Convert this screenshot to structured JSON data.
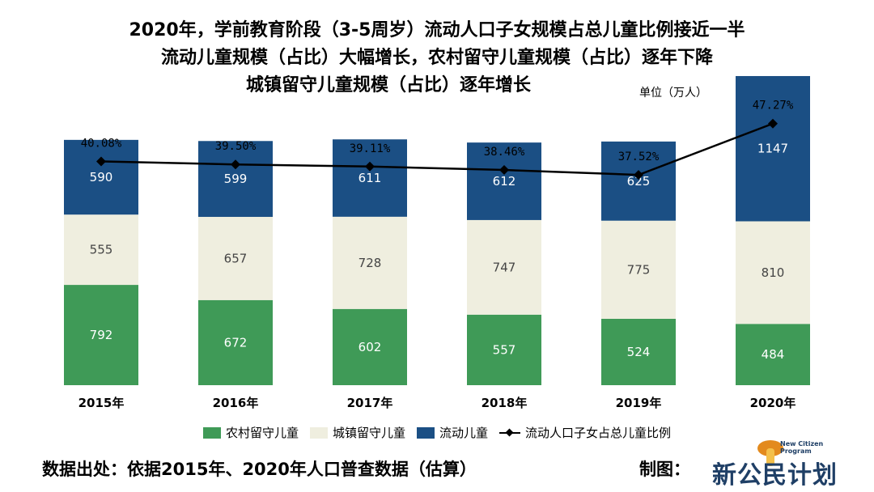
{
  "titles": [
    "2020年，学前教育阶段（3-5周岁）流动人口子女规模占总儿童比例接近一半",
    "流动儿童规模（占比）大幅增长，农村留守儿童规模（占比）逐年下降",
    "城镇留守儿童规模（占比）逐年增长"
  ],
  "unit": "单位（万人）",
  "source": "数据出处：依据2015年、2020年人口普查数据（估算）",
  "credit_label": "制图：",
  "logo": {
    "cn": "新公民计划",
    "en": "New Citizen Program"
  },
  "colors": {
    "rural": "#3f9a57",
    "urban": "#efeedf",
    "migrant": "#1b4f84",
    "line": "#000000"
  },
  "chart_data": {
    "type": "bar",
    "stacked": true,
    "categories": [
      "2015年",
      "2016年",
      "2017年",
      "2018年",
      "2019年",
      "2020年"
    ],
    "series": [
      {
        "name": "农村留守儿童",
        "values": [
          792,
          672,
          602,
          557,
          524,
          484
        ]
      },
      {
        "name": "城镇留守儿童",
        "values": [
          555,
          657,
          728,
          747,
          775,
          810
        ]
      },
      {
        "name": "流动儿童",
        "values": [
          590,
          599,
          611,
          612,
          625,
          1147
        ]
      }
    ],
    "line_series": {
      "name": "流动人口子女占总儿童比例",
      "values": [
        40.08,
        39.5,
        39.11,
        38.46,
        37.52,
        47.27
      ],
      "labels": [
        "40.08%",
        "39.50%",
        "39.11%",
        "38.46%",
        "37.52%",
        "47.27%"
      ]
    },
    "legend": [
      "农村留守儿童",
      "城镇留守儿童",
      "流动儿童",
      "流动人口子女占总儿童比例"
    ],
    "legend_position": "bottom",
    "grid": false
  }
}
